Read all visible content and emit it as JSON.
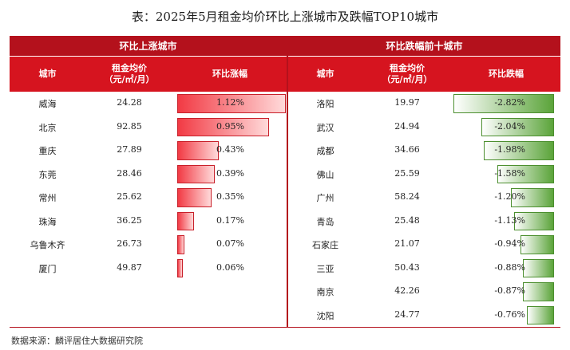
{
  "title": "表：2025年5月租金均价环比上涨城市及跌幅TOP10城市",
  "source": "数据来源：麟评居住大数据研究院",
  "colors": {
    "header_dark": "#b4111c",
    "header": "#d6141f",
    "up_bar": "#f23a44",
    "down_bar": "#5ba43a"
  },
  "chart_data": [
    {
      "type": "table",
      "title": "环比上涨城市",
      "columns": [
        "城市",
        "租金均价\n（元/㎡/月）",
        "环比涨幅"
      ],
      "rows": [
        {
          "city": "威海",
          "rent": "24.28",
          "change": 1.12,
          "label": "1.12%"
        },
        {
          "city": "北京",
          "rent": "92.85",
          "change": 0.95,
          "label": "0.95%"
        },
        {
          "city": "重庆",
          "rent": "27.89",
          "change": 0.43,
          "label": "0.43%"
        },
        {
          "city": "东莞",
          "rent": "28.46",
          "change": 0.39,
          "label": "0.39%"
        },
        {
          "city": "常州",
          "rent": "25.62",
          "change": 0.35,
          "label": "0.35%"
        },
        {
          "city": "珠海",
          "rent": "36.25",
          "change": 0.17,
          "label": "0.17%"
        },
        {
          "city": "乌鲁木齐",
          "rent": "26.73",
          "change": 0.07,
          "label": "0.07%"
        },
        {
          "city": "厦门",
          "rent": "49.87",
          "change": 0.06,
          "label": "0.06%"
        }
      ]
    },
    {
      "type": "table",
      "title": "环比跌幅前十城市",
      "columns": [
        "城市",
        "租金均价\n（元/㎡/月）",
        "环比跌幅"
      ],
      "rows": [
        {
          "city": "洛阳",
          "rent": "19.97",
          "change": -2.82,
          "label": "-2.82%"
        },
        {
          "city": "武汉",
          "rent": "24.94",
          "change": -2.04,
          "label": "-2.04%"
        },
        {
          "city": "成都",
          "rent": "34.66",
          "change": -1.98,
          "label": "-1.98%"
        },
        {
          "city": "佛山",
          "rent": "25.59",
          "change": -1.58,
          "label": "-1.58%"
        },
        {
          "city": "广州",
          "rent": "58.24",
          "change": -1.2,
          "label": "-1.20%"
        },
        {
          "city": "青岛",
          "rent": "25.48",
          "change": -1.13,
          "label": "-1.13%"
        },
        {
          "city": "石家庄",
          "rent": "21.07",
          "change": -0.94,
          "label": "-0.94%"
        },
        {
          "city": "三亚",
          "rent": "50.43",
          "change": -0.88,
          "label": "-0.88%"
        },
        {
          "city": "南京",
          "rent": "42.26",
          "change": -0.87,
          "label": "-0.87%"
        },
        {
          "city": "沈阳",
          "rent": "24.77",
          "change": -0.76,
          "label": "-0.76%"
        }
      ]
    }
  ]
}
